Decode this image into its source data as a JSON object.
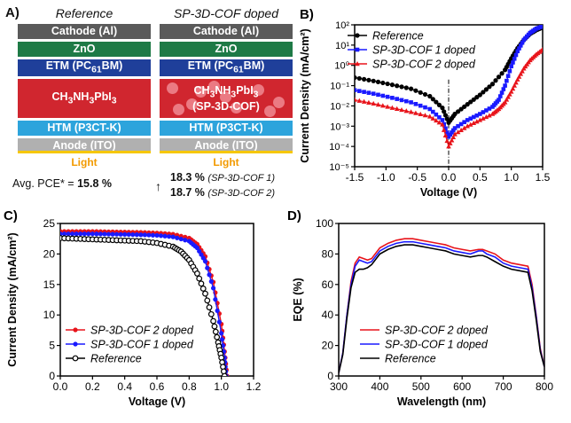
{
  "panel_a": {
    "letter": "A)",
    "ref_title": "Reference",
    "doped_title": "SP-3D-COF doped",
    "ref_layers": [
      "Cathode (Al)",
      "ZnO",
      "ETM (PC61BM)",
      "CH3NH3PbI3",
      "HTM (P3CT-K)",
      "Anode (ITO)"
    ],
    "doped_layers": [
      "Cathode (Al)",
      "ZnO",
      "ETM (PC61BM)",
      "CH3NH3PbI3 (SP-3D-COF)",
      "HTM (P3CT-K)",
      "Anode (ITO)"
    ],
    "light": "Light",
    "pce_prefix": "Avg. PCE* = ",
    "pce_ref": "15.8 %",
    "pce_arrow": "↑",
    "pce_1": "18.3 %",
    "pce_1_label": "(SP-3D-COF 1)",
    "pce_2": "18.7 %",
    "pce_2_label": "(SP-3D-COF 2)",
    "colors": {
      "cathode": "#5a5a5a",
      "zno": "#1e7a46",
      "etm": "#1f3f9a",
      "active": "#d0262f",
      "htm": "#2da4dc",
      "anode": "#b0b0b0",
      "light": "#f6c700"
    }
  },
  "chart_data": [
    {
      "panel": "B)",
      "type": "line",
      "xlabel": "Voltage (V)",
      "ylabel": "Current Density (mA/cm²)",
      "yscale": "log",
      "xlim": [
        -1.5,
        1.5
      ],
      "ylim": [
        1e-05,
        100
      ],
      "xticks": [
        "-1.5",
        "-1.0",
        "-0.5",
        "0.0",
        "0.5",
        "1.0",
        "1.5"
      ],
      "yticks": [
        "10⁻⁵",
        "10⁻⁴",
        "10⁻³",
        "10⁻²",
        "10⁻¹",
        "10⁰",
        "10¹",
        "10²"
      ],
      "legend_position": "top-left",
      "dashed_vline_x": 0.0,
      "series": [
        {
          "name": "Reference",
          "color": "#000000",
          "marker": "circle",
          "x": [
            -1.5,
            -1.2,
            -0.9,
            -0.6,
            -0.3,
            -0.1,
            0,
            0.1,
            0.3,
            0.5,
            0.7,
            0.9,
            1.0,
            1.1,
            1.2,
            1.3,
            1.4,
            1.5
          ],
          "y": [
            0.25,
            0.17,
            0.11,
            0.07,
            0.03,
            0.008,
            0.0015,
            0.004,
            0.012,
            0.035,
            0.12,
            0.6,
            2.2,
            7,
            18,
            36,
            55,
            75
          ]
        },
        {
          "name": "SP-3D-COF 1 doped",
          "color": "#1a1aff",
          "marker": "square",
          "x": [
            -1.5,
            -1.2,
            -0.9,
            -0.6,
            -0.3,
            -0.1,
            0,
            0.1,
            0.3,
            0.5,
            0.7,
            0.8,
            0.9,
            1.0,
            1.1,
            1.2,
            1.3,
            1.4,
            1.5
          ],
          "y": [
            0.06,
            0.04,
            0.025,
            0.015,
            0.007,
            0.002,
            0.0003,
            0.0008,
            0.002,
            0.004,
            0.009,
            0.02,
            0.1,
            0.9,
            5,
            18,
            40,
            65,
            85
          ]
        },
        {
          "name": "SP-3D-COF 2 doped",
          "color": "#e8141b",
          "marker": "triangle",
          "x": [
            -1.5,
            -1.2,
            -0.9,
            -0.6,
            -0.3,
            -0.1,
            0,
            0.1,
            0.3,
            0.5,
            0.7,
            0.8,
            0.9,
            1.0,
            1.1,
            1.2,
            1.3,
            1.4,
            1.5
          ],
          "y": [
            0.02,
            0.013,
            0.008,
            0.005,
            0.003,
            0.0012,
            0.0001,
            0.0004,
            0.001,
            0.002,
            0.004,
            0.007,
            0.015,
            0.05,
            0.2,
            0.7,
            1.8,
            3.5,
            6
          ]
        }
      ]
    },
    {
      "panel": "C)",
      "type": "line",
      "xlabel": "Voltage (V)",
      "ylabel": "Current Density (mA/cm²)",
      "xlim": [
        0,
        1.2
      ],
      "ylim": [
        0,
        25
      ],
      "xticks": [
        "0.0",
        "0.2",
        "0.4",
        "0.6",
        "0.8",
        "1.0",
        "1.2"
      ],
      "yticks": [
        "0",
        "5",
        "10",
        "15",
        "20",
        "25"
      ],
      "legend_position": "bottom-left",
      "series": [
        {
          "name": "SP-3D-COF 2 doped",
          "color": "#e8141b",
          "marker": "circle",
          "x": [
            0,
            0.1,
            0.2,
            0.3,
            0.4,
            0.5,
            0.6,
            0.7,
            0.8,
            0.85,
            0.9,
            0.95,
            1.0,
            1.02,
            1.035
          ],
          "y": [
            23.7,
            23.7,
            23.7,
            23.65,
            23.6,
            23.55,
            23.45,
            23.25,
            22.6,
            21.6,
            19.6,
            15.4,
            8.5,
            4,
            0
          ]
        },
        {
          "name": "SP-3D-COF 1 doped",
          "color": "#1a1aff",
          "marker": "circle",
          "x": [
            0,
            0.1,
            0.2,
            0.3,
            0.4,
            0.5,
            0.6,
            0.7,
            0.8,
            0.85,
            0.9,
            0.95,
            1.0,
            1.02,
            1.03
          ],
          "y": [
            23.3,
            23.3,
            23.3,
            23.25,
            23.2,
            23.15,
            23.05,
            22.8,
            22.1,
            21.0,
            18.8,
            14.4,
            7,
            3,
            0
          ]
        },
        {
          "name": "Reference",
          "color": "#000000",
          "marker": "open-circle",
          "x": [
            0,
            0.1,
            0.2,
            0.3,
            0.4,
            0.5,
            0.6,
            0.7,
            0.75,
            0.8,
            0.85,
            0.9,
            0.95,
            0.98,
            1.0,
            1.02
          ],
          "y": [
            22.6,
            22.5,
            22.4,
            22.3,
            22.2,
            22.1,
            21.8,
            21.2,
            20.4,
            19,
            16.8,
            13.5,
            9,
            5.5,
            3,
            0
          ]
        }
      ]
    },
    {
      "panel": "D)",
      "type": "line",
      "xlabel": "Wavelength (nm)",
      "ylabel": "EQE (%)",
      "xlim": [
        300,
        800
      ],
      "ylim": [
        0,
        100
      ],
      "xticks": [
        "300",
        "400",
        "500",
        "600",
        "700",
        "800"
      ],
      "yticks": [
        "0",
        "20",
        "40",
        "60",
        "80",
        "100"
      ],
      "legend_position": "bottom-center",
      "series": [
        {
          "name": "SP-3D-COF 2 doped",
          "color": "#e8141b",
          "x": [
            300,
            310,
            320,
            330,
            340,
            350,
            360,
            370,
            380,
            400,
            420,
            440,
            460,
            480,
            500,
            520,
            540,
            560,
            580,
            600,
            620,
            640,
            650,
            660,
            680,
            700,
            720,
            740,
            760,
            770,
            780,
            790,
            800
          ],
          "y": [
            2,
            15,
            40,
            62,
            74,
            78,
            77,
            76,
            77,
            84,
            87,
            89,
            90,
            90,
            89,
            88,
            87,
            86,
            84,
            83,
            82,
            83,
            83,
            82,
            80,
            76,
            74,
            73,
            72,
            60,
            40,
            18,
            6
          ]
        },
        {
          "name": "SP-3D-COF 1 doped",
          "color": "#1a1aff",
          "x": [
            300,
            310,
            320,
            330,
            340,
            350,
            360,
            370,
            380,
            400,
            420,
            440,
            460,
            480,
            500,
            520,
            540,
            560,
            580,
            600,
            620,
            640,
            650,
            660,
            680,
            700,
            720,
            740,
            760,
            770,
            780,
            790,
            800
          ],
          "y": [
            2,
            15,
            40,
            60,
            72,
            76,
            75,
            74,
            75,
            82,
            85,
            87,
            88,
            88,
            87,
            86,
            85,
            84,
            82,
            81,
            80,
            82,
            82,
            80,
            78,
            74,
            72,
            71,
            70,
            58,
            39,
            17,
            6
          ]
        },
        {
          "name": "Reference",
          "color": "#000000",
          "x": [
            300,
            310,
            320,
            330,
            340,
            350,
            360,
            370,
            380,
            400,
            420,
            440,
            460,
            480,
            500,
            520,
            540,
            560,
            580,
            600,
            620,
            640,
            650,
            660,
            680,
            700,
            720,
            740,
            760,
            770,
            780,
            790,
            800
          ],
          "y": [
            2,
            14,
            38,
            58,
            68,
            70,
            70,
            71,
            73,
            80,
            83,
            85,
            86,
            86,
            85,
            84,
            83,
            82,
            80,
            79,
            78,
            79,
            79,
            78,
            75,
            72,
            70,
            69,
            68,
            56,
            37,
            16,
            6
          ]
        }
      ]
    }
  ]
}
